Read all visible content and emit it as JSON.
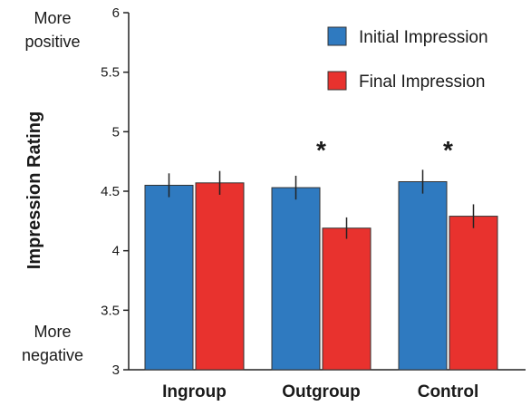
{
  "chart_data": {
    "type": "bar",
    "ylabel": "Impression Rating",
    "ylim": [
      3,
      6
    ],
    "yticks": [
      "3",
      "3.5",
      "4",
      "4.5",
      "5",
      "5.5",
      "6"
    ],
    "categories": [
      "Ingroup",
      "Outgroup",
      "Control"
    ],
    "series": [
      {
        "name": "Initial Impression",
        "color": "#2f7ac0",
        "values": [
          4.55,
          4.53,
          4.58
        ],
        "errors": [
          0.1,
          0.1,
          0.1
        ]
      },
      {
        "name": "Final Impression",
        "color": "#e8322e",
        "values": [
          4.57,
          4.19,
          4.29
        ],
        "errors": [
          0.1,
          0.09,
          0.1
        ]
      }
    ],
    "significance": [
      "",
      "*",
      "*"
    ],
    "annotations": {
      "top": [
        "More",
        "positive"
      ],
      "bottom": [
        "More",
        "negative"
      ]
    },
    "legend_position": "top-right",
    "grid": false
  }
}
